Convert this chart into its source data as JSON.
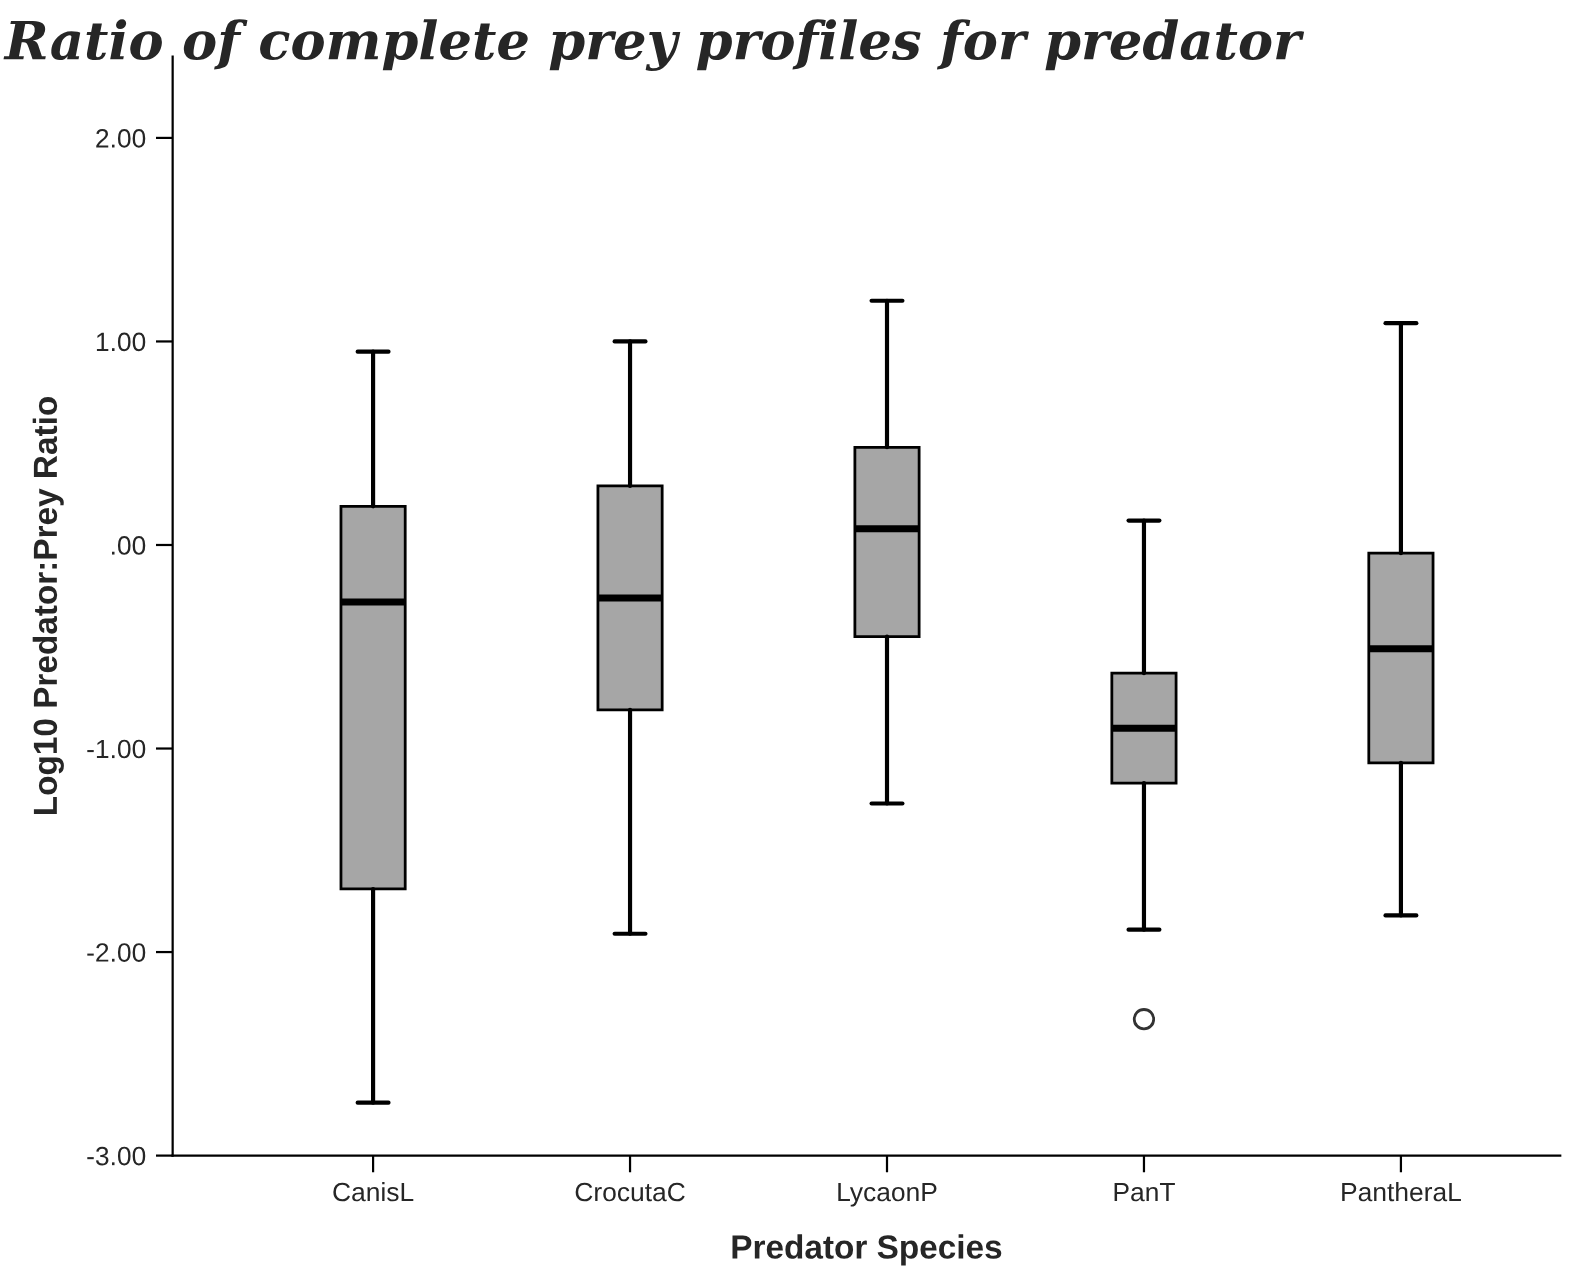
{
  "chart_data": {
    "type": "box",
    "title": "Ratio of complete prey profiles for predator",
    "xlabel": "Predator Species",
    "ylabel": "Log10 Predator:Prey Ratio",
    "categories": [
      "CanisL",
      "CrocutaC",
      "LycaonP",
      "PanT",
      "PantheraL"
    ],
    "color": "#a6a6a6",
    "boxes": [
      {
        "low": -2.74,
        "q1": -1.69,
        "median": -0.28,
        "q3": 0.19,
        "high": 0.95
      },
      {
        "low": -1.91,
        "q1": -0.81,
        "median": -0.26,
        "q3": 0.29,
        "high": 1.0
      },
      {
        "low": -1.27,
        "q1": -0.45,
        "median": 0.08,
        "q3": 0.48,
        "high": 1.2
      },
      {
        "low": -1.89,
        "q1": -1.17,
        "median": -0.9,
        "q3": -0.63,
        "high": 0.12,
        "outliers": [
          -2.33
        ]
      },
      {
        "low": -1.82,
        "q1": -1.07,
        "median": -0.51,
        "q3": -0.04,
        "high": 1.09
      }
    ],
    "ylim": [
      -3,
      2.4
    ],
    "yticks": [
      {
        "value": -3,
        "label": "-3.00"
      },
      {
        "value": -2,
        "label": "-2.00"
      },
      {
        "value": -1,
        "label": "-1.00"
      },
      {
        "value": 0,
        "label": ".00"
      },
      {
        "value": 1,
        "label": "1.00"
      },
      {
        "value": 2,
        "label": "2.00"
      }
    ],
    "grid": false
  }
}
